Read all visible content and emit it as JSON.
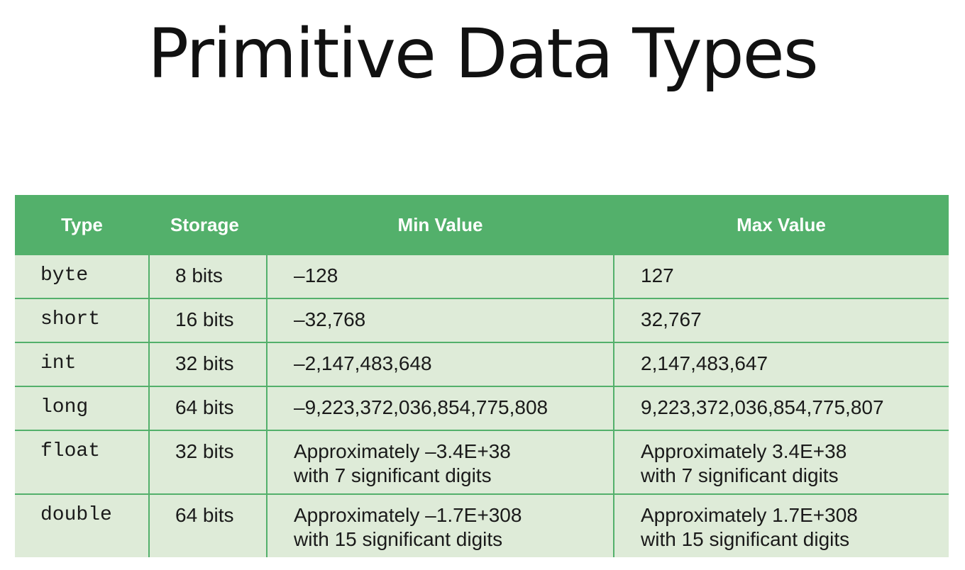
{
  "title": "Primitive Data Types",
  "table": {
    "headers": [
      "Type",
      "Storage",
      "Min Value",
      "Max Value"
    ],
    "rows": [
      {
        "type": "byte",
        "storage": "8 bits",
        "min": [
          "–128"
        ],
        "max": [
          "127"
        ]
      },
      {
        "type": "short",
        "storage": "16 bits",
        "min": [
          "–32,768"
        ],
        "max": [
          "32,767"
        ]
      },
      {
        "type": "int",
        "storage": "32 bits",
        "min": [
          "–2,147,483,648"
        ],
        "max": [
          "2,147,483,647"
        ]
      },
      {
        "type": "long",
        "storage": "64 bits",
        "min": [
          "–9,223,372,036,854,775,808"
        ],
        "max": [
          "9,223,372,036,854,775,807"
        ]
      },
      {
        "type": "float",
        "storage": "32 bits",
        "min": [
          "Approximately –3.4E+38",
          "with 7 significant digits"
        ],
        "max": [
          "Approximately 3.4E+38",
          "with 7 significant digits"
        ]
      },
      {
        "type": "double",
        "storage": "64 bits",
        "min": [
          "Approximately –1.7E+308",
          "with 15 significant digits"
        ],
        "max": [
          "Approximately 1.7E+308",
          "with 15 significant digits"
        ]
      }
    ]
  },
  "colors": {
    "header_bg": "#53b06b",
    "row_bg": "#deebd8",
    "grid": "#53b06b"
  }
}
